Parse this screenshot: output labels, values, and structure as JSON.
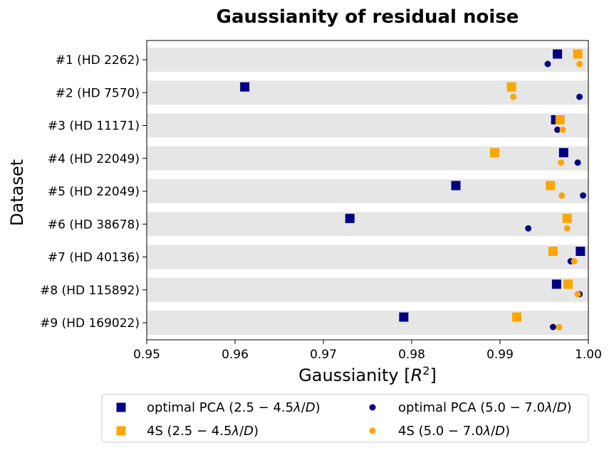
{
  "chart_data": {
    "type": "scatter",
    "title": "Gaussianity of residual noise",
    "xlabel": "Gaussianity [R²]",
    "ylabel": "Dataset",
    "xlim": [
      0.95,
      1.0
    ],
    "xticks": [
      "0.95",
      "0.96",
      "0.97",
      "0.98",
      "0.99",
      "1.00"
    ],
    "xtick_values": [
      0.95,
      0.96,
      0.97,
      0.98,
      0.99,
      1.0
    ],
    "categories": [
      "#1 (HD 2262)",
      "#2 (HD 7570)",
      "#3 (HD 11171)",
      "#4 (HD 22049)",
      "#5 (HD 22049)",
      "#6 (HD 38678)",
      "#7 (HD 40136)",
      "#8 (HD 115892)",
      "#9 (HD 169022)"
    ],
    "series": [
      {
        "name": "optimal PCA (2.5 − 4.5λ/D)",
        "marker": "square",
        "color": "#000080",
        "values": [
          0.9965,
          0.9611,
          0.9963,
          0.9972,
          0.985,
          0.973,
          0.9991,
          0.9964,
          0.9791
        ]
      },
      {
        "name": "4S (2.5 − 4.5λ/D)",
        "marker": "square",
        "color": "#ffa500",
        "values": [
          0.9988,
          0.9913,
          0.9968,
          0.9894,
          0.9957,
          0.9976,
          0.996,
          0.9977,
          0.9919
        ]
      },
      {
        "name": "optimal PCA (5.0 − 7.0λ/D)",
        "marker": "circle",
        "color": "#000080",
        "values": [
          0.9954,
          0.999,
          0.9965,
          0.9988,
          0.9994,
          0.9932,
          0.998,
          0.999,
          0.996
        ]
      },
      {
        "name": "4S (5.0 − 7.0λ/D)",
        "marker": "circle",
        "color": "#ffa500",
        "values": [
          0.999,
          0.9915,
          0.9971,
          0.9969,
          0.997,
          0.9976,
          0.9984,
          0.9988,
          0.9967
        ]
      }
    ],
    "legend": {
      "placement": "bottom",
      "entries": [
        {
          "label": "optimal PCA (2.5 − 4.5λ/D)",
          "marker": "square",
          "color": "#000080"
        },
        {
          "label": "optimal PCA (5.0 − 7.0λ/D)",
          "marker": "circle",
          "color": "#000080"
        },
        {
          "label": "4S (2.5 − 4.5λ/D)",
          "marker": "square",
          "color": "#ffa500"
        },
        {
          "label": "4S (5.0 − 7.0λ/D)",
          "marker": "circle",
          "color": "#ffa500"
        }
      ]
    },
    "row_band_color": "#e6e6e6",
    "grid": false
  }
}
